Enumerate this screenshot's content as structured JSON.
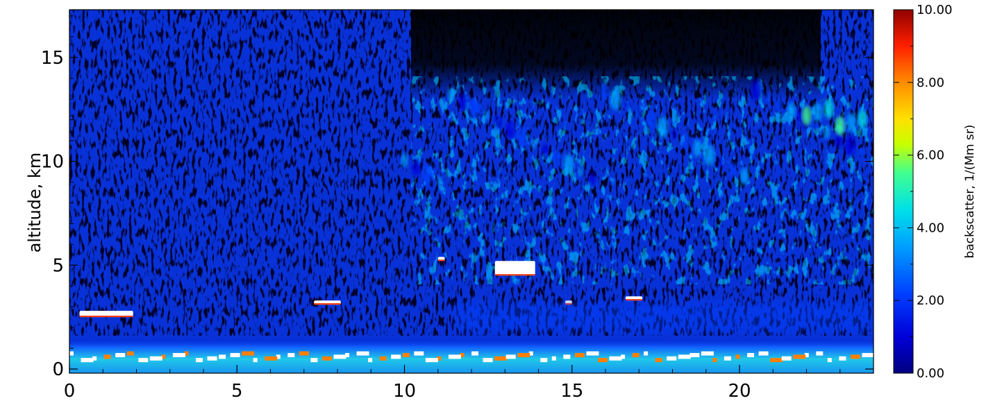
{
  "chart_data": {
    "type": "heatmap",
    "title": "",
    "xlabel": "",
    "ylabel": "altitude, km",
    "xlim": [
      0,
      24
    ],
    "ylim": [
      -0.2,
      17.3
    ],
    "xticks": [
      0,
      5,
      10,
      15,
      20
    ],
    "yticks": [
      0,
      5,
      10,
      15
    ],
    "x_tick_labels": [
      "0",
      "5",
      "10",
      "15",
      "20"
    ],
    "y_tick_labels": [
      "0",
      "5",
      "10",
      "15"
    ],
    "colorbar": {
      "title": "backscatter, 1/(Mm sr)",
      "range": [
        0,
        10
      ],
      "ticks": [
        0,
        2,
        4,
        6,
        8,
        10
      ],
      "tick_labels": [
        "0.00",
        "2.00",
        "4.00",
        "6.00",
        "8.00",
        "10.00"
      ],
      "colormap": "rainbow (dark blue - blue - cyan - green - yellow - orange - red - dark red)"
    },
    "features": [
      {
        "kind": "boundary-layer",
        "x": [
          0,
          24
        ],
        "y": [
          0,
          1.2
        ],
        "backscatter": 3.5
      },
      {
        "kind": "cloud",
        "x": [
          0.3,
          1.9
        ],
        "y": [
          2.5,
          2.8
        ],
        "backscatter": 10
      },
      {
        "kind": "cloud",
        "x": [
          7.3,
          8.1
        ],
        "y": [
          3.1,
          3.3
        ],
        "backscatter": 10
      },
      {
        "kind": "cloud",
        "x": [
          11,
          11.2
        ],
        "y": [
          5.2,
          5.4
        ],
        "backscatter": 10
      },
      {
        "kind": "cloud",
        "x": [
          12.7,
          13.9
        ],
        "y": [
          4.5,
          5.2
        ],
        "backscatter": 10
      },
      {
        "kind": "cloud",
        "x": [
          14.8,
          15.0
        ],
        "y": [
          3.1,
          3.3
        ],
        "backscatter": 10
      },
      {
        "kind": "cloud",
        "x": [
          16.6,
          17.1
        ],
        "y": [
          3.3,
          3.5
        ],
        "backscatter": 10
      },
      {
        "kind": "aerosol-layer",
        "x": [
          11.5,
          24
        ],
        "y": [
          1.8,
          3.2
        ],
        "backscatter": 1.8
      },
      {
        "kind": "cirrus",
        "x": [
          10,
          24
        ],
        "y": [
          5,
          14
        ],
        "backscatter": 4
      },
      {
        "kind": "cirrus",
        "x": [
          22,
          24
        ],
        "y": [
          10.8,
          12.8
        ],
        "backscatter": 6
      }
    ]
  }
}
